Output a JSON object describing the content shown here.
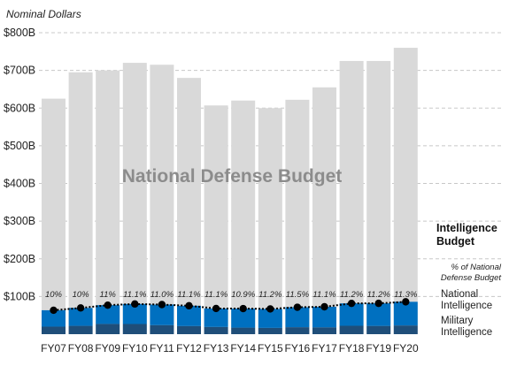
{
  "chart_data": {
    "type": "bar",
    "unit_label": "Nominal Dollars",
    "y_ticks": [
      "$800B",
      "$700B",
      "$600B",
      "$500B",
      "$400B",
      "$300B",
      "$200B",
      "$100B"
    ],
    "y_tick_values": [
      800,
      700,
      600,
      500,
      400,
      300,
      200,
      100
    ],
    "ylim": [
      0,
      800
    ],
    "grid": true,
    "categories": [
      "FY07",
      "FY08",
      "FY09",
      "FY10",
      "FY11",
      "FY12",
      "FY13",
      "FY14",
      "FY15",
      "FY16",
      "FY17",
      "FY18",
      "FY19",
      "FY20"
    ],
    "series": [
      {
        "name": "National Defense Budget",
        "color": "#d9d9d9",
        "values": [
          625,
          695,
          700,
          720,
          715,
          680,
          607,
          620,
          600,
          622,
          655,
          725,
          725,
          760
        ]
      },
      {
        "name": "National Intelligence",
        "color": "#0070c0",
        "values": [
          43.5,
          47.5,
          49.8,
          53.1,
          54.6,
          53.9,
          49.0,
          50.5,
          50.3,
          53.0,
          54.6,
          59.4,
          59.9,
          62.8
        ]
      },
      {
        "name": "Military Intelligence",
        "color": "#1f4e79",
        "values": [
          20.0,
          22.1,
          27.2,
          27.0,
          24.0,
          21.5,
          19.2,
          17.4,
          16.7,
          18.5,
          18.1,
          22.3,
          21.9,
          23.1
        ]
      }
    ],
    "pct_labels": [
      "10%",
      "10%",
      "11%",
      "11.1%",
      "11.0%",
      "11.1%",
      "11.1%",
      "10.9%",
      "11.2%",
      "11.5%",
      "11.1%",
      "11.2%",
      "11.2%",
      "11.3%"
    ],
    "watermark_title": "National Defense Budget",
    "legend": {
      "intel_title_line1": "Intelligence",
      "intel_title_line2": "Budget",
      "pct_line1": "% of National",
      "pct_line2": "Defense Budget",
      "national_line1": "National",
      "national_line2": "Intelligence",
      "military_line1": "Military",
      "military_line2": "Intelligence"
    }
  }
}
